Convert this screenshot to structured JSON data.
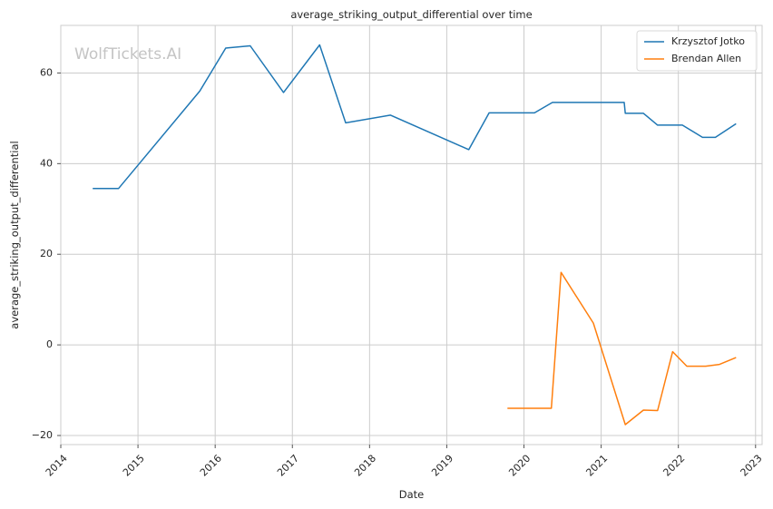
{
  "chart_data": {
    "type": "line",
    "title": "average_striking_output_differential over time",
    "xlabel": "Date",
    "ylabel": "average_striking_output_differential",
    "watermark": "WolfTickets.AI",
    "xlim": [
      "2014-01-01",
      "2023-02-01"
    ],
    "ylim": [
      -22,
      70.5
    ],
    "x_ticks": [
      "2014",
      "2015",
      "2016",
      "2017",
      "2018",
      "2019",
      "2020",
      "2021",
      "2022",
      "2023"
    ],
    "y_ticks": [
      -20,
      0,
      20,
      40,
      60
    ],
    "grid": true,
    "legend_position": "top-right",
    "colors": {
      "Krzysztof Jotko": "#1f77b4",
      "Brendan Allen": "#ff7f0e"
    },
    "series": [
      {
        "name": "Krzysztof Jotko",
        "points": [
          [
            "2014-06-01",
            34.5
          ],
          [
            "2014-10-01",
            34.5
          ],
          [
            "2015-10-20",
            56.0
          ],
          [
            "2016-02-20",
            65.5
          ],
          [
            "2016-06-15",
            66.0
          ],
          [
            "2016-11-20",
            55.7
          ],
          [
            "2017-05-10",
            66.2
          ],
          [
            "2017-09-10",
            49.0
          ],
          [
            "2018-04-10",
            50.7
          ],
          [
            "2019-04-15",
            43.1
          ],
          [
            "2019-07-20",
            51.2
          ],
          [
            "2020-02-20",
            51.2
          ],
          [
            "2020-05-15",
            53.5
          ],
          [
            "2021-04-20",
            53.5
          ],
          [
            "2021-04-25",
            51.1
          ],
          [
            "2021-07-20",
            51.1
          ],
          [
            "2021-09-25",
            48.5
          ],
          [
            "2022-01-20",
            48.5
          ],
          [
            "2022-04-25",
            45.8
          ],
          [
            "2022-06-25",
            45.8
          ],
          [
            "2022-10-01",
            48.8
          ]
        ]
      },
      {
        "name": "Brendan Allen",
        "points": [
          [
            "2019-10-15",
            -14.0
          ],
          [
            "2020-05-10",
            -14.0
          ],
          [
            "2020-06-25",
            16.0
          ],
          [
            "2020-11-25",
            4.8
          ],
          [
            "2021-04-25",
            -17.6
          ],
          [
            "2021-07-20",
            -14.4
          ],
          [
            "2021-09-25",
            -14.5
          ],
          [
            "2021-12-05",
            -1.5
          ],
          [
            "2022-02-10",
            -4.7
          ],
          [
            "2022-05-10",
            -4.7
          ],
          [
            "2022-07-15",
            -4.3
          ],
          [
            "2022-10-01",
            -2.8
          ]
        ]
      }
    ]
  }
}
